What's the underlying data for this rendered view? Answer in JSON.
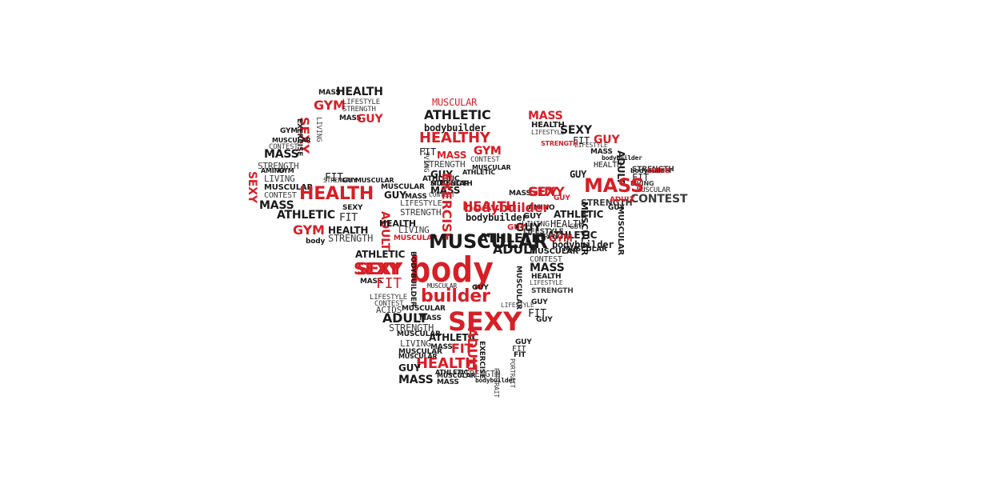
{
  "colors": {
    "red": "#d71f27",
    "black": "#1b1b1b",
    "gray": "#3c3c3c"
  },
  "words": [
    {
      "t": "MASS",
      "c": "black"
    },
    {
      "t": "HEALTH",
      "c": "black"
    },
    {
      "t": "GYM",
      "c": "red"
    },
    {
      "t": "LIFESTYLE",
      "c": "gray"
    },
    {
      "t": "STRENGTH",
      "c": "gray"
    },
    {
      "t": "MASS",
      "c": "black"
    },
    {
      "t": "GUY",
      "c": "red"
    },
    {
      "t": "SEXY",
      "c": "red"
    },
    {
      "t": "EXERCISE",
      "c": "black"
    },
    {
      "t": "LIVING",
      "c": "gray"
    },
    {
      "t": "GYM",
      "c": "black"
    },
    {
      "t": "MUSCULAR",
      "c": "black"
    },
    {
      "t": "CONTEST",
      "c": "gray"
    },
    {
      "t": "MASS",
      "c": "black"
    },
    {
      "t": "STRENGTH",
      "c": "gray"
    },
    {
      "t": "SEXY",
      "c": "red"
    },
    {
      "t": "AMINO",
      "c": "black"
    },
    {
      "t": "GYM",
      "c": "black"
    },
    {
      "t": "LIVING",
      "c": "gray"
    },
    {
      "t": "MUSCULAR",
      "c": "black"
    },
    {
      "t": "CONTEST",
      "c": "gray"
    },
    {
      "t": "MASS",
      "c": "black"
    },
    {
      "t": "FIT",
      "c": "black"
    },
    {
      "t": "HEALTH",
      "c": "red"
    },
    {
      "t": "STRENGTH",
      "c": "black"
    },
    {
      "t": "GUY",
      "c": "black"
    },
    {
      "t": "MUSCULAR",
      "c": "black"
    },
    {
      "t": "FIT",
      "c": "gray"
    },
    {
      "t": "ATHLETIC",
      "c": "black"
    },
    {
      "t": "SEXY",
      "c": "black"
    },
    {
      "t": "FIT",
      "c": "gray"
    },
    {
      "t": "GYM",
      "c": "red"
    },
    {
      "t": "HEALTH",
      "c": "black"
    },
    {
      "t": "STRENGTH",
      "c": "gray"
    },
    {
      "t": "body",
      "c": "black"
    },
    {
      "t": "GUY",
      "c": "black"
    },
    {
      "t": "ADULT",
      "c": "red"
    },
    {
      "t": "MASS",
      "c": "black"
    },
    {
      "t": "LIFESTYLE",
      "c": "gray"
    },
    {
      "t": "STRENGTH",
      "c": "gray"
    },
    {
      "t": "LIVING",
      "c": "gray"
    },
    {
      "t": "MUSCULAR",
      "c": "red"
    },
    {
      "t": "HEALTH",
      "c": "black"
    },
    {
      "t": "MUSCULAR",
      "c": "black"
    },
    {
      "t": "ATHLETIC",
      "c": "black"
    },
    {
      "t": "STRENGTH",
      "c": "black"
    },
    {
      "t": "MUSCULAR",
      "c": "red"
    },
    {
      "t": "ATHLETIC",
      "c": "black"
    },
    {
      "t": "bodybuilder",
      "c": "black"
    },
    {
      "t": "HEALTHY",
      "c": "red"
    },
    {
      "t": "FIT",
      "c": "black"
    },
    {
      "t": "MASS",
      "c": "red"
    },
    {
      "t": "GYM",
      "c": "red"
    },
    {
      "t": "LIVING",
      "c": "gray"
    },
    {
      "t": "CONTEST",
      "c": "gray"
    },
    {
      "t": "STRENGTH",
      "c": "gray"
    },
    {
      "t": "MUSCULAR",
      "c": "black"
    },
    {
      "t": "GUY",
      "c": "black"
    },
    {
      "t": "ATHLETIC",
      "c": "black"
    },
    {
      "t": "MUSCULAR",
      "c": "black"
    },
    {
      "t": "MASS",
      "c": "black"
    },
    {
      "t": "CONTEST",
      "c": "gray"
    },
    {
      "t": "EXERCISE",
      "c": "red"
    },
    {
      "t": "HEALTH",
      "c": "red"
    },
    {
      "t": "bodybuilder",
      "c": "black"
    },
    {
      "t": "MASS",
      "c": "black"
    },
    {
      "t": "GUY",
      "c": "red"
    },
    {
      "t": "AMINO",
      "c": "black"
    },
    {
      "t": "GUY",
      "c": "black"
    },
    {
      "t": "LIVING",
      "c": "gray"
    },
    {
      "t": "MASS",
      "c": "red"
    },
    {
      "t": "HEALTH",
      "c": "black"
    },
    {
      "t": "LIFESTYLE",
      "c": "gray"
    },
    {
      "t": "SEXY",
      "c": "black"
    },
    {
      "t": "FIT",
      "c": "black"
    },
    {
      "t": "GUY",
      "c": "red"
    },
    {
      "t": "STRENGTH",
      "c": "red"
    },
    {
      "t": "LIFESTYLE",
      "c": "gray"
    },
    {
      "t": "MASS",
      "c": "black"
    },
    {
      "t": "ADULT",
      "c": "black"
    },
    {
      "t": "bodybuilder",
      "c": "black"
    },
    {
      "t": "HEALTH",
      "c": "black"
    },
    {
      "t": "STRENGTH",
      "c": "gray"
    },
    {
      "t": "GUY",
      "c": "black"
    },
    {
      "t": "bodybuilder",
      "c": "black"
    },
    {
      "t": "AMINO",
      "c": "red"
    },
    {
      "t": "FIT",
      "c": "black"
    },
    {
      "t": "LIVING",
      "c": "gray"
    },
    {
      "t": "MUSCULAR",
      "c": "black"
    },
    {
      "t": "CONTEST",
      "c": "gray"
    },
    {
      "t": "MASS",
      "c": "red"
    },
    {
      "t": "SEXY",
      "c": "red"
    },
    {
      "t": "GUY",
      "c": "red"
    },
    {
      "t": "ATHLETIC",
      "c": "black"
    },
    {
      "t": "HEALTH",
      "c": "black"
    },
    {
      "t": "STRENGTH",
      "c": "gray"
    },
    {
      "t": "GUY",
      "c": "black"
    },
    {
      "t": "MUSCULAR",
      "c": "black"
    },
    {
      "t": "MUSCULAR",
      "c": "black"
    },
    {
      "t": "ADULT",
      "c": "red"
    },
    {
      "t": "GUY",
      "c": "black"
    },
    {
      "t": "LIFESTYLE",
      "c": "gray"
    },
    {
      "t": "ATHLETIC",
      "c": "black"
    },
    {
      "t": "MUSCULAR",
      "c": "black"
    },
    {
      "t": "SEXY",
      "c": "red"
    },
    {
      "t": "GUY",
      "c": "black"
    },
    {
      "t": "STRENGTH",
      "c": "gray"
    },
    {
      "t": "bodybuilder",
      "c": "red"
    },
    {
      "t": "GUY",
      "c": "red"
    },
    {
      "t": "MUSCULAR",
      "c": "black"
    },
    {
      "t": "GYM",
      "c": "red"
    },
    {
      "t": "ATHLETIC",
      "c": "black"
    },
    {
      "t": "bodybuilder",
      "c": "black"
    },
    {
      "t": "ADULT",
      "c": "black"
    },
    {
      "t": "MUSCULAR",
      "c": "black"
    },
    {
      "t": "CONTEST",
      "c": "gray"
    },
    {
      "t": "MASS",
      "c": "black"
    },
    {
      "t": "ATHLETIC",
      "c": "black"
    },
    {
      "t": "SEXY",
      "c": "red"
    },
    {
      "t": "body",
      "c": "red"
    },
    {
      "t": "BODYBUILDER",
      "c": "black"
    },
    {
      "t": "MASS",
      "c": "black"
    },
    {
      "t": "FIT",
      "c": "red"
    },
    {
      "t": "MUSCULAR",
      "c": "black"
    },
    {
      "t": "GUY",
      "c": "black"
    },
    {
      "t": "HEALTH",
      "c": "black"
    },
    {
      "t": "LIFESTYLE",
      "c": "gray"
    },
    {
      "t": "MUSCULAR",
      "c": "black"
    },
    {
      "t": "STRENGTH",
      "c": "gray"
    },
    {
      "t": "builder",
      "c": "red"
    },
    {
      "t": "LIFESTYLE",
      "c": "gray"
    },
    {
      "t": "CONTEST",
      "c": "gray"
    },
    {
      "t": "ACIDS",
      "c": "gray"
    },
    {
      "t": "MUSCULAR",
      "c": "black"
    },
    {
      "t": "ADULT",
      "c": "black"
    },
    {
      "t": "MASS",
      "c": "black"
    },
    {
      "t": "STRENGTH",
      "c": "gray"
    },
    {
      "t": "SEXY",
      "c": "red"
    },
    {
      "t": "GUY",
      "c": "black"
    },
    {
      "t": "MUSCULAR",
      "c": "black"
    },
    {
      "t": "LIFESTYLE",
      "c": "gray"
    },
    {
      "t": "FIT",
      "c": "black"
    },
    {
      "t": "GUY",
      "c": "black"
    },
    {
      "t": "ATHLETIC",
      "c": "black"
    },
    {
      "t": "LIVING",
      "c": "gray"
    },
    {
      "t": "MASS",
      "c": "black"
    },
    {
      "t": "FIT",
      "c": "red"
    },
    {
      "t": "MUSCULAR",
      "c": "black"
    },
    {
      "t": "EXERCISE",
      "c": "black"
    },
    {
      "t": "ADULT",
      "c": "red"
    },
    {
      "t": "GUY",
      "c": "black"
    },
    {
      "t": "FIT",
      "c": "black"
    },
    {
      "t": "MUSCULAR",
      "c": "black"
    },
    {
      "t": "HEALTH",
      "c": "red"
    },
    {
      "t": "GUY",
      "c": "black"
    },
    {
      "t": "PORTRAIT",
      "c": "gray"
    },
    {
      "t": "MASS",
      "c": "black"
    },
    {
      "t": "MUSCULAR",
      "c": "black"
    },
    {
      "t": "bodybuilder",
      "c": "black"
    },
    {
      "t": "ATHLETIC",
      "c": "black"
    },
    {
      "t": "STRENGTH",
      "c": "gray"
    },
    {
      "t": "MASS",
      "c": "black"
    },
    {
      "t": "GYM",
      "c": "red"
    },
    {
      "t": "FIT",
      "c": "black"
    },
    {
      "t": "PORTRAIT",
      "c": "gray"
    }
  ]
}
